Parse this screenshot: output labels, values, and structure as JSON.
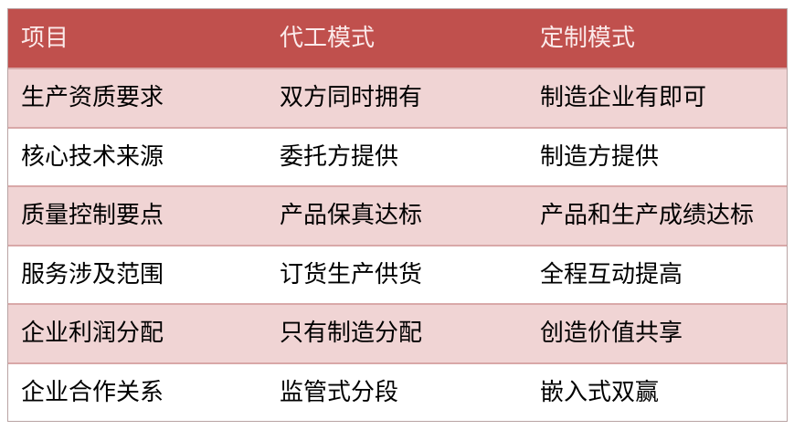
{
  "table": {
    "headers": [
      "项目",
      "代工模式",
      "定制模式"
    ],
    "rows": [
      [
        "生产资质要求",
        "双方同时拥有",
        "制造企业有即可"
      ],
      [
        "核心技术来源",
        "委托方提供",
        "制造方提供"
      ],
      [
        "质量控制要点",
        "产品保真达标",
        "产品和生产成绩达标"
      ],
      [
        "服务涉及范围",
        "订货生产供货",
        "全程互动提高"
      ],
      [
        "企业利润分配",
        "只有制造分配",
        "创造价值共享"
      ],
      [
        "企业合作关系",
        "监管式分段",
        "嵌入式双赢"
      ]
    ],
    "colors": {
      "header": "#c0504d",
      "band": "#f0d4d4"
    }
  }
}
